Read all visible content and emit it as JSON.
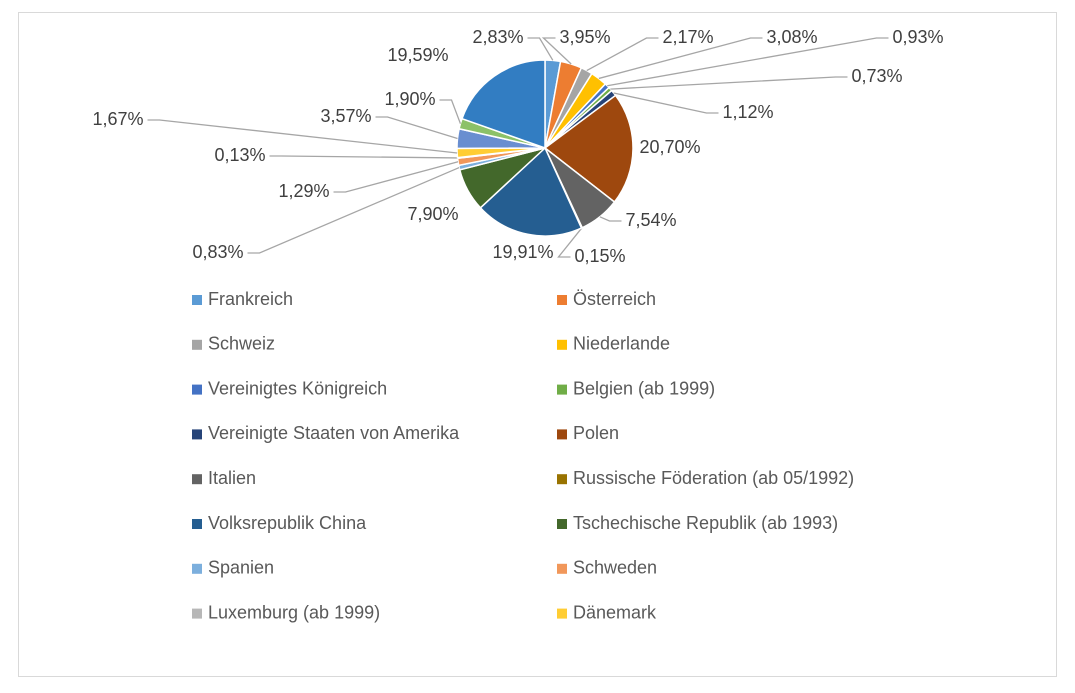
{
  "chart_data": {
    "type": "pie",
    "categories": [
      "Frankreich",
      "Österreich",
      "Schweiz",
      "Niederlande",
      "Vereinigtes Königreich",
      "Belgien (ab 1999)",
      "Vereinigte Staaten von Amerika",
      "Polen",
      "Italien",
      "Russische Föderation (ab 05/1992)",
      "Volksrepublik China",
      "Tschechische Republik (ab 1993)",
      "Spanien",
      "Schweden",
      "Luxemburg (ab 1999)",
      "Dänemark",
      null,
      null,
      null
    ],
    "values": [
      2.83,
      3.95,
      2.17,
      3.08,
      0.93,
      0.73,
      1.12,
      20.7,
      7.54,
      0.15,
      19.91,
      7.9,
      0.83,
      1.29,
      0.13,
      1.67,
      3.57,
      1.9,
      19.59
    ],
    "value_labels": [
      "2,83%",
      "3,95%",
      "2,17%",
      "3,08%",
      "0,93%",
      "0,73%",
      "1,12%",
      "20,70%",
      "7,54%",
      "0,15%",
      "19,91%",
      "7,90%",
      "0,83%",
      "1,29%",
      "0,13%",
      "1,67%",
      "3,57%",
      "1,90%",
      "19,59%"
    ],
    "colors": [
      "#5B9BD5",
      "#ED7D31",
      "#A5A5A5",
      "#FFC000",
      "#4472C4",
      "#70AD47",
      "#264478",
      "#9E480E",
      "#636363",
      "#997300",
      "#255E91",
      "#43682B",
      "#7CAFDD",
      "#F1975A",
      "#B7B7B7",
      "#FFCD33",
      "#698ED0",
      "#8CC168",
      "#327DC2"
    ],
    "legend": "bottom"
  }
}
